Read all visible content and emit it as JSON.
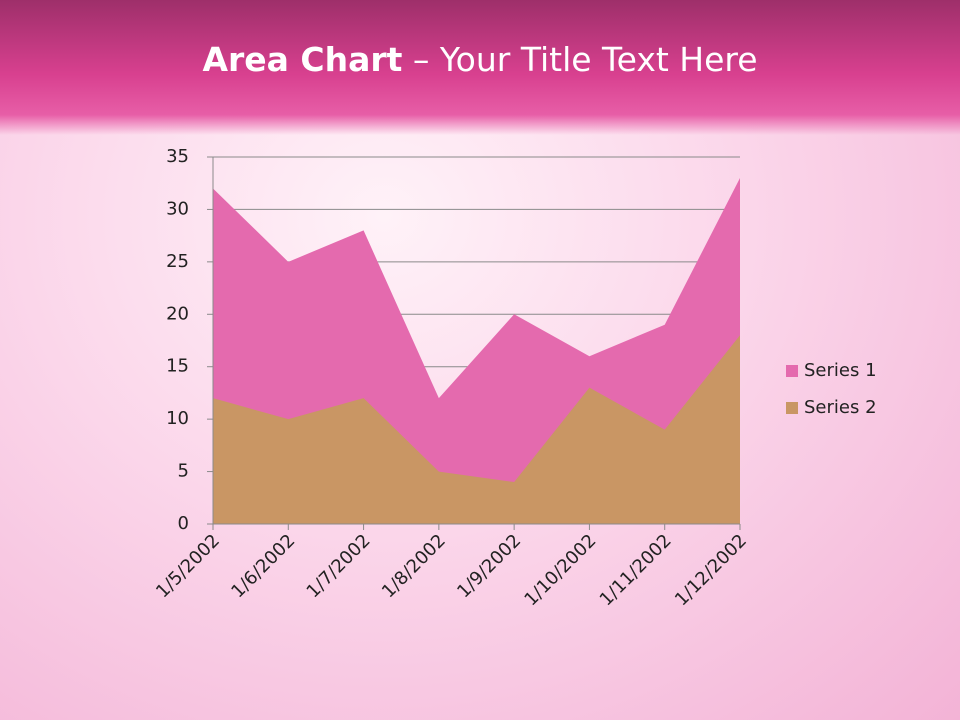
{
  "chart_data": {
    "type": "area",
    "title": {
      "bold": "Area Chart",
      "rest": "– Your Title Text Here"
    },
    "categories": [
      "1/5/2002",
      "1/6/2002",
      "1/7/2002",
      "1/8/2002",
      "1/9/2002",
      "1/10/2002",
      "1/11/2002",
      "1/12/2002"
    ],
    "series": [
      {
        "name": "Series 1",
        "color": "#e46aae",
        "values": [
          32,
          25,
          28,
          12,
          20,
          16,
          19,
          33
        ]
      },
      {
        "name": "Series 2",
        "color": "#c99664",
        "values": [
          12,
          10,
          12,
          5,
          4,
          13,
          9,
          18
        ]
      }
    ],
    "ylim": [
      0,
      35
    ],
    "yticks": [
      0,
      5,
      10,
      15,
      20,
      25,
      30,
      35
    ],
    "grid": true,
    "legend": "right"
  }
}
